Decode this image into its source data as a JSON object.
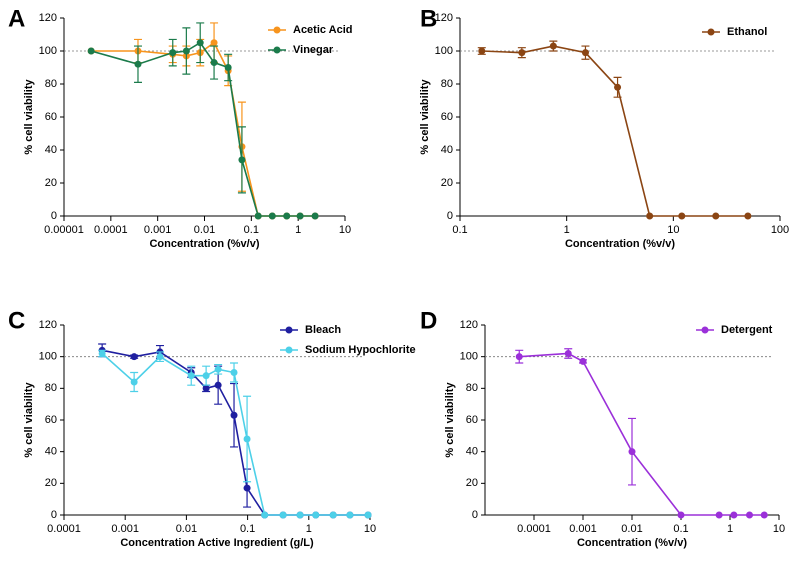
{
  "chart_data": [
    {
      "type": "line",
      "label": "A",
      "xlabel": "Concentration (%v/v)",
      "ylabel": "% cell viability",
      "xscale": "log",
      "xlim": [
        1e-05,
        10
      ],
      "xticks": [
        1e-05,
        0.0001,
        0.001,
        0.01,
        0.1,
        1,
        10
      ],
      "ylim": [
        0,
        120
      ],
      "yticks": [
        0,
        20,
        40,
        60,
        80,
        100,
        120
      ],
      "refline": 100,
      "x": [
        3.8e-05,
        0.00038,
        0.0021,
        0.0041,
        0.0081,
        0.016,
        0.032,
        0.063,
        0.14,
        0.28,
        0.57,
        1.1,
        2.3
      ],
      "series": [
        {
          "name": "Acetic Acid",
          "color": "#f7941d",
          "values": [
            100,
            100,
            98,
            97,
            99,
            105,
            88,
            42,
            0,
            0,
            0,
            0,
            0
          ],
          "errors": [
            0,
            7,
            5,
            6,
            8,
            12,
            9,
            27,
            0,
            0,
            0,
            0,
            0
          ]
        },
        {
          "name": "Vinegar",
          "color": "#1b7b4b",
          "values": [
            100,
            92,
            99,
            100,
            105,
            93,
            90,
            34,
            0,
            0,
            0,
            0,
            0
          ],
          "errors": [
            0,
            11,
            8,
            14,
            12,
            10,
            8,
            20,
            0,
            0,
            0,
            0,
            0
          ]
        }
      ]
    },
    {
      "type": "line",
      "label": "B",
      "xlabel": "Concentration (%v/v)",
      "ylabel": "% cell viability",
      "xscale": "log",
      "xlim": [
        0.1,
        100
      ],
      "xticks": [
        0.1,
        1,
        10,
        100
      ],
      "ylim": [
        0,
        120
      ],
      "yticks": [
        0,
        20,
        40,
        60,
        80,
        100,
        120
      ],
      "refline": 100,
      "x": [
        0.16,
        0.38,
        0.75,
        1.5,
        3,
        6,
        12,
        25,
        50
      ],
      "series": [
        {
          "name": "Ethanol",
          "color": "#8b4513",
          "values": [
            100,
            99,
            103,
            99,
            78,
            0,
            0,
            0,
            0
          ],
          "errors": [
            2,
            3,
            3,
            4,
            6,
            0,
            0,
            0,
            0
          ]
        }
      ]
    },
    {
      "type": "line",
      "label": "C",
      "xlabel": "Concentration Active Ingredient (g/L)",
      "ylabel": "% cell viability",
      "xscale": "log",
      "xlim": [
        0.0001,
        10
      ],
      "xticks": [
        0.0001,
        0.001,
        0.01,
        0.1,
        1,
        10
      ],
      "ylim": [
        0,
        120
      ],
      "yticks": [
        0,
        20,
        40,
        60,
        80,
        100,
        120
      ],
      "refline": 100,
      "x": [
        0.00042,
        0.0014,
        0.0037,
        0.012,
        0.021,
        0.033,
        0.06,
        0.098,
        0.19,
        0.38,
        0.72,
        1.3,
        2.5,
        4.7,
        9.3
      ],
      "series": [
        {
          "name": "Bleach",
          "color": "#1f1fa0",
          "values": [
            104,
            100,
            103,
            90,
            80,
            82,
            63,
            17,
            0,
            0,
            0,
            0,
            0,
            0,
            0
          ],
          "errors": [
            4,
            1,
            4,
            3,
            2,
            12,
            20,
            12,
            0,
            0,
            0,
            0,
            0,
            0,
            0
          ]
        },
        {
          "name": "Sodium Hypochlorite",
          "color": "#4dd0e8",
          "values": [
            102,
            84,
            100,
            88,
            88,
            92,
            90,
            48,
            0,
            0,
            0,
            0,
            0,
            0,
            0
          ],
          "errors": [
            2,
            6,
            3,
            6,
            6,
            3,
            6,
            27,
            0,
            0,
            0,
            0,
            0,
            0,
            0
          ]
        }
      ]
    },
    {
      "type": "line",
      "label": "D",
      "xlabel": "Concentration (%v/v)",
      "ylabel": "% cell viability",
      "xscale": "log",
      "xlim": [
        1e-05,
        10
      ],
      "xticks": [
        0.0001,
        0.001,
        0.01,
        0.1,
        1,
        10
      ],
      "ylim": [
        0,
        120
      ],
      "yticks": [
        0,
        20,
        40,
        60,
        80,
        100,
        120
      ],
      "refline": 100,
      "x": [
        5e-05,
        0.0005,
        0.001,
        0.01,
        0.1,
        0.6,
        1.2,
        2.5,
        5
      ],
      "series": [
        {
          "name": "Detergent",
          "color": "#9b30d9",
          "values": [
            100,
            102,
            97,
            40,
            0,
            0,
            0,
            0,
            0
          ],
          "errors": [
            4,
            3,
            1,
            21,
            0,
            0,
            0,
            0,
            0
          ]
        }
      ]
    }
  ]
}
